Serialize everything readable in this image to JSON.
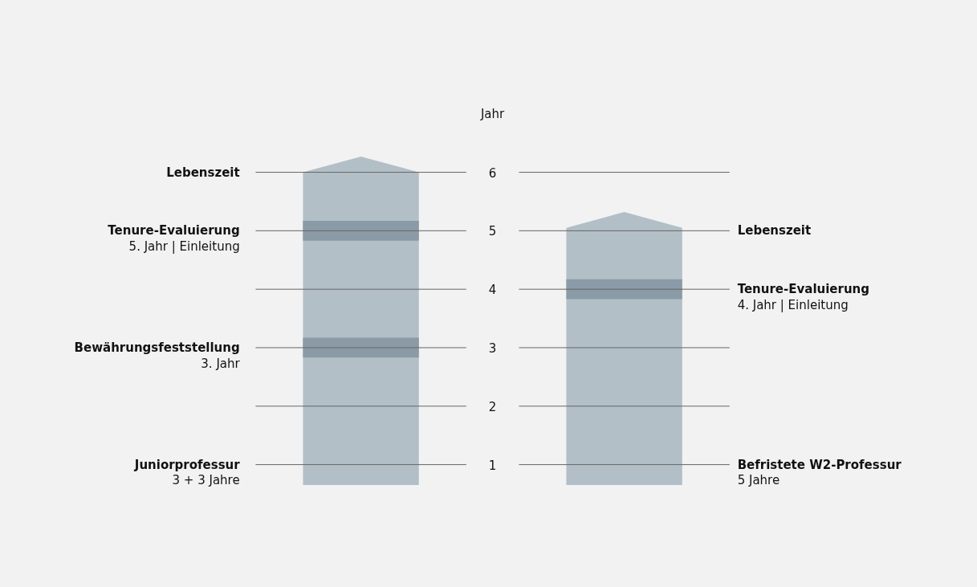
{
  "chart_data": {
    "type": "bar",
    "ylabel": "Jahr",
    "categories": [
      "Juniorprofessur",
      "Befristete W2-Professur"
    ],
    "series": [
      {
        "color": "#b3bfc7",
        "base": [
          0.65,
          0.65
        ],
        "values": [
          5.62,
          4.67
        ]
      },
      {
        "color": "#8a9aa6",
        "base": [
          4.83,
          3.83
        ],
        "values": [
          0.34,
          0.34
        ]
      },
      {
        "color": "#8a9aa6",
        "base": [
          2.83,
          null
        ],
        "values": [
          0.34,
          null
        ]
      }
    ],
    "ylim": [
      -1.1,
      8.94
    ],
    "yticks": [
      1,
      2,
      3,
      4,
      5,
      6
    ],
    "ref_lines": [
      {
        "axis": "y",
        "value": 1,
        "color": "#666666"
      },
      {
        "axis": "y",
        "value": 2,
        "color": "#666666"
      },
      {
        "axis": "y",
        "value": 3,
        "color": "#666666"
      },
      {
        "axis": "y",
        "value": 4,
        "color": "#666666"
      },
      {
        "axis": "y",
        "value": 5,
        "color": "#666666"
      },
      {
        "axis": "y",
        "value": 6,
        "color": "#666666"
      }
    ],
    "annotations": [
      "Lebenszeit",
      "Tenure-Evaluierung\n5. Jahr | Einleitung",
      "Bewährungsfeststellung\n3. Jahr",
      "3 + 3 Jahre",
      "Lebenszeit",
      "Tenure-Evaluierung\n4. Jahr | Einleitung",
      "5 Jahre"
    ]
  }
}
